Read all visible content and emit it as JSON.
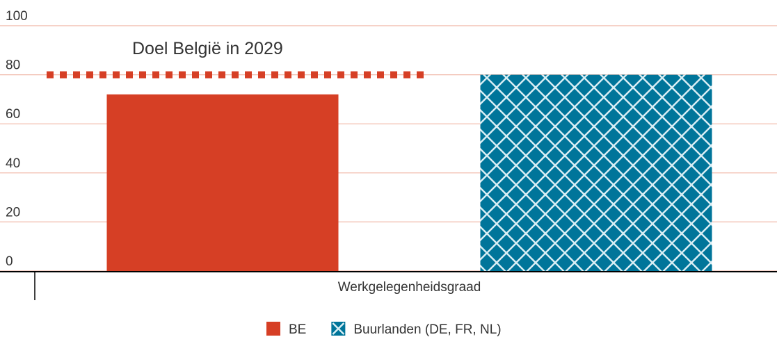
{
  "chart_data": {
    "type": "bar",
    "categories": [
      "Werkgelegenheidsgraad"
    ],
    "series": [
      {
        "name": "BE",
        "color": "#d63f25",
        "values": [
          72
        ]
      },
      {
        "name": "Buurlanden (DE, FR, NL)",
        "color": "#00759a",
        "pattern": "crosshatch",
        "values": [
          80
        ]
      }
    ],
    "target": {
      "label": "Doel België in 2029",
      "value": 80,
      "color": "#d63f25",
      "style": "dotted"
    },
    "ylim": [
      0,
      100
    ],
    "yticks": [
      0,
      20,
      40,
      60,
      80,
      100
    ],
    "grid": true,
    "grid_color": "#f0b8a8",
    "legend": "bottom"
  }
}
